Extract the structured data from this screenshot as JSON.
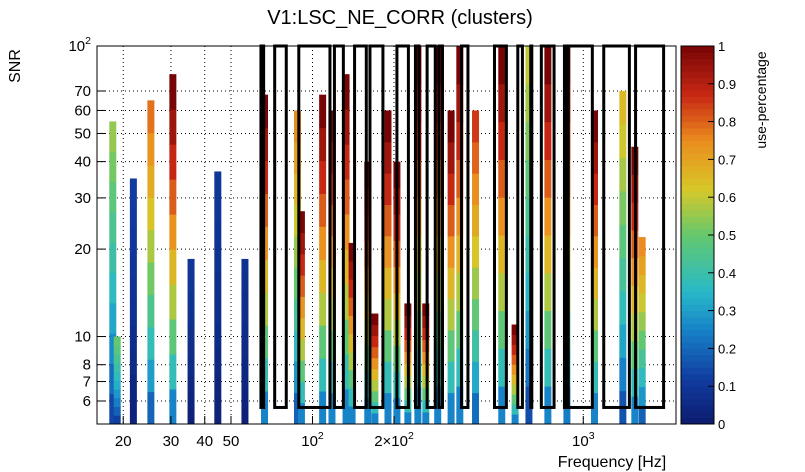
{
  "chart_data": {
    "type": "heatmap",
    "title": "V1:LSC_NE_CORR (clusters)",
    "xlabel": "Frequency [Hz]",
    "ylabel": "SNR",
    "colorbar_label": "use-percentage",
    "x_scale": "log",
    "y_scale": "log",
    "xlim": [
      16,
      2200
    ],
    "ylim": [
      5,
      100
    ],
    "zlim": [
      0,
      1
    ],
    "x_ticks": [
      {
        "value": 20,
        "label": "20"
      },
      {
        "value": 30,
        "label": "30"
      },
      {
        "value": 40,
        "label": "40"
      },
      {
        "value": 50,
        "label": "50"
      },
      {
        "value": 100,
        "label": "10",
        "sup": "2"
      },
      {
        "value": 200,
        "label": "2×10",
        "sup": "2"
      },
      {
        "value": 1000,
        "label": "10",
        "sup": "3"
      }
    ],
    "y_ticks": [
      {
        "value": 6,
        "label": "6"
      },
      {
        "value": 7,
        "label": "7"
      },
      {
        "value": 8,
        "label": "8"
      },
      {
        "value": 10,
        "label": "10"
      },
      {
        "value": 20,
        "label": "20"
      },
      {
        "value": 30,
        "label": "30"
      },
      {
        "value": 40,
        "label": "40"
      },
      {
        "value": 50,
        "label": "50"
      },
      {
        "value": 60,
        "label": "60"
      },
      {
        "value": 70,
        "label": "70"
      },
      {
        "value": 100,
        "label": "10",
        "sup": "2"
      }
    ],
    "colorbar_ticks": [
      {
        "value": 0,
        "label": "0"
      },
      {
        "value": 0.1,
        "label": "0.1"
      },
      {
        "value": 0.2,
        "label": "0.2"
      },
      {
        "value": 0.3,
        "label": "0.3"
      },
      {
        "value": 0.4,
        "label": "0.4"
      },
      {
        "value": 0.5,
        "label": "0.5"
      },
      {
        "value": 0.6,
        "label": "0.6"
      },
      {
        "value": 0.7,
        "label": "0.7"
      },
      {
        "value": 0.8,
        "label": "0.8"
      },
      {
        "value": 0.9,
        "label": "0.9"
      },
      {
        "value": 1,
        "label": "1"
      }
    ],
    "columns": [
      {
        "f": 18.3,
        "snr_max": 55,
        "peak": 0.55
      },
      {
        "f": 19.0,
        "snr_max": 10,
        "peak": 0.5
      },
      {
        "f": 21.8,
        "snr_max": 35,
        "peak": 0.12
      },
      {
        "f": 25.3,
        "snr_max": 65,
        "peak": 0.78
      },
      {
        "f": 30.5,
        "snr_max": 80,
        "peak": 1.0
      },
      {
        "f": 35.6,
        "snr_max": 18.5,
        "peak": 0.1
      },
      {
        "f": 44.7,
        "snr_max": 37,
        "peak": 0.1
      },
      {
        "f": 56.3,
        "snr_max": 18.5,
        "peak": 0.08
      },
      {
        "f": 66.5,
        "snr_max": 68,
        "peak": 1.0
      },
      {
        "f": 88.0,
        "snr_max": 60,
        "peak": 0.75
      },
      {
        "f": 91.0,
        "snr_max": 27,
        "peak": 1.0
      },
      {
        "f": 109.0,
        "snr_max": 68,
        "peak": 1.0
      },
      {
        "f": 118.0,
        "snr_max": 60,
        "peak": 1.0
      },
      {
        "f": 133.0,
        "snr_max": 80,
        "peak": 1.0
      },
      {
        "f": 140.0,
        "snr_max": 21,
        "peak": 1.0
      },
      {
        "f": 160.0,
        "snr_max": 40,
        "peak": 1.0
      },
      {
        "f": 170.0,
        "snr_max": 12,
        "peak": 1.0
      },
      {
        "f": 190.0,
        "snr_max": 60,
        "peak": 1.0
      },
      {
        "f": 205.0,
        "snr_max": 40,
        "peak": 1.0
      },
      {
        "f": 225.0,
        "snr_max": 13,
        "peak": 1.0
      },
      {
        "f": 245.0,
        "snr_max": 100,
        "peak": 1.0
      },
      {
        "f": 262.0,
        "snr_max": 13,
        "peak": 1.0
      },
      {
        "f": 290.0,
        "snr_max": 100,
        "peak": 1.0
      },
      {
        "f": 325.0,
        "snr_max": 60,
        "peak": 1.0
      },
      {
        "f": 350.0,
        "snr_max": 100,
        "peak": 1.0
      },
      {
        "f": 400.0,
        "snr_max": 60,
        "peak": 0.85
      },
      {
        "f": 500.0,
        "snr_max": 100,
        "peak": 1.0
      },
      {
        "f": 560.0,
        "snr_max": 11,
        "peak": 1.0
      },
      {
        "f": 630.0,
        "snr_max": 100,
        "peak": 0.6
      },
      {
        "f": 740.0,
        "snr_max": 100,
        "peak": 1.0
      },
      {
        "f": 870.0,
        "snr_max": 100,
        "peak": 0.95
      },
      {
        "f": 1100.0,
        "snr_max": 60,
        "peak": 1.0
      },
      {
        "f": 1400.0,
        "snr_max": 70,
        "peak": 0.65
      },
      {
        "f": 1550.0,
        "snr_max": 45,
        "peak": 1.0
      },
      {
        "f": 1650.0,
        "snr_max": 22,
        "peak": 0.75
      }
    ],
    "outlined_bands": [
      [
        64.5,
        66.0
      ],
      [
        72.5,
        80.0
      ],
      [
        89.0,
        116.0
      ],
      [
        120.5,
        130.0
      ],
      [
        143.0,
        158.0
      ],
      [
        163.0,
        182.0
      ],
      [
        205.0,
        226.0
      ],
      [
        240.0,
        247.5
      ],
      [
        265.0,
        284.0
      ],
      [
        293.0,
        302.0
      ],
      [
        355.0,
        375.0
      ],
      [
        470.0,
        520.0
      ],
      [
        573.0,
        596.0
      ],
      [
        640.0,
        645.0
      ],
      [
        700.0,
        780.0
      ],
      [
        852.0,
        866.0
      ],
      [
        880.0,
        1080.0
      ],
      [
        1190.0,
        1480.0
      ],
      [
        1560.0,
        1980.0
      ]
    ]
  }
}
